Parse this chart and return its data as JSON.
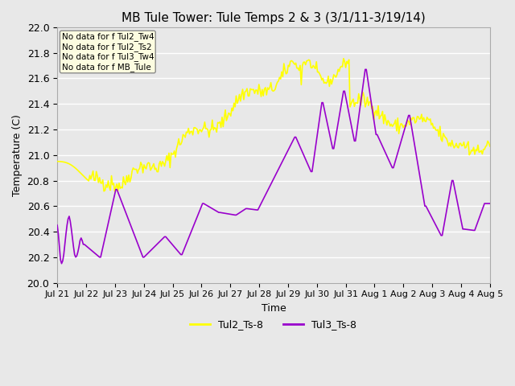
{
  "title": "MB Tule Tower: Tule Temps 2 & 3 (3/1/11-3/19/14)",
  "xlabel": "Time",
  "ylabel": "Temperature (C)",
  "ylim": [
    20.0,
    22.0
  ],
  "yticks": [
    20.0,
    20.2,
    20.4,
    20.6,
    20.8,
    21.0,
    21.2,
    21.4,
    21.6,
    21.8,
    22.0
  ],
  "background_color": "#e8e8e8",
  "plot_bg_color": "#e8e8e8",
  "grid_color": "#ffffff",
  "line1_color": "#ffff00",
  "line2_color": "#9900cc",
  "line1_label": "Tul2_Ts-8",
  "line2_label": "Tul3_Ts-8",
  "no_data_lines": [
    "No data for f Tul2_Tw4",
    "No data for f Tul2_Ts2",
    "No data for f Tul3_Tw4",
    "No data for f MB_Tule"
  ],
  "xtick_labels": [
    "Jul 21",
    "Jul 22",
    "Jul 23",
    "Jul 24",
    "Jul 25",
    "Jul 26",
    "Jul 27",
    "Jul 28",
    "Jul 29",
    "Jul 30",
    "Jul 31",
    "Aug 1",
    "Aug 2",
    "Aug 3",
    "Aug 4",
    "Aug 5"
  ],
  "n_points": 400
}
